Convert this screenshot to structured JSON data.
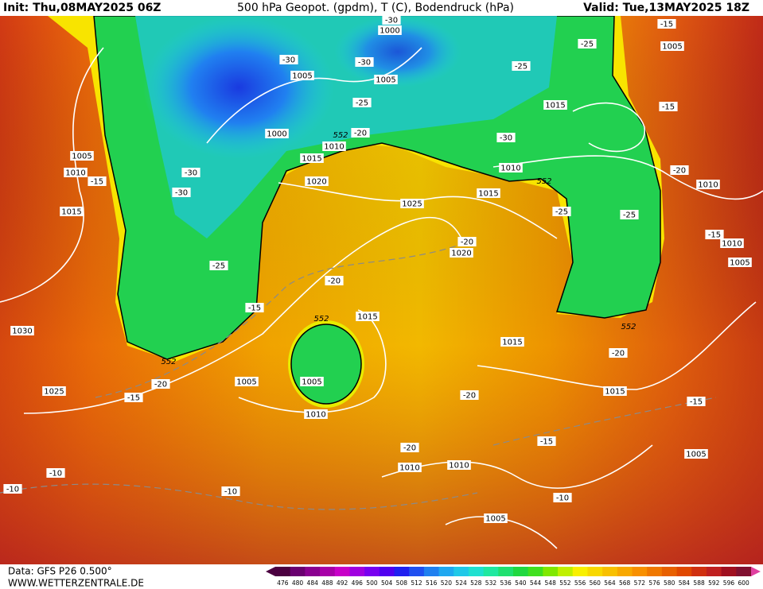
{
  "header": {
    "init": "Init: Thu,08MAY2025 06Z",
    "title": "500 hPa Geopot. (gpdm), T (C), Bodendruck (hPa)",
    "valid": "Valid: Tue,13MAY2025 18Z"
  },
  "footer": {
    "data": "Data: GFS P26 0.500°",
    "site": "WWW.WETTERZENTRALE.DE"
  },
  "colorbar": {
    "labels": [
      476,
      480,
      484,
      488,
      492,
      496,
      500,
      504,
      508,
      512,
      516,
      520,
      524,
      528,
      532,
      536,
      540,
      544,
      548,
      552,
      556,
      560,
      564,
      568,
      572,
      576,
      580,
      584,
      588,
      592,
      596,
      600
    ],
    "colors": [
      "#4b0040",
      "#6a0070",
      "#8a0090",
      "#a800a8",
      "#c800c8",
      "#a000e0",
      "#7800f0",
      "#5000f0",
      "#2020f0",
      "#2050f0",
      "#2080f0",
      "#20a8f0",
      "#20c8e8",
      "#20e0d0",
      "#20e8a0",
      "#20e070",
      "#20d840",
      "#40e020",
      "#80e800",
      "#c0f000",
      "#f8f000",
      "#f8d800",
      "#f8c000",
      "#f8a800",
      "#f89000",
      "#f07800",
      "#e86000",
      "#e04800",
      "#d03010",
      "#c02020",
      "#a01020",
      "#801030"
    ]
  },
  "pressure_labels": [
    "1000",
    "1005",
    "1005",
    "1015",
    "1005",
    "1005",
    "1010",
    "1015",
    "1000",
    "1010",
    "1015",
    "1020",
    "1025",
    "1020",
    "1010",
    "1015",
    "1010",
    "1010",
    "1005",
    "1030",
    "1025",
    "1005",
    "1005",
    "1010",
    "1015",
    "1015",
    "1015",
    "1010",
    "1010",
    "1005",
    "1005"
  ],
  "temperature_labels": [
    "-30",
    "-30",
    "-30",
    "-30",
    "-30",
    "-30",
    "-25",
    "-25",
    "-25",
    "-25",
    "-25",
    "-25",
    "-20",
    "-20",
    "-20",
    "-20",
    "-20",
    "-20",
    "-20",
    "-20",
    "-15",
    "-15",
    "-15",
    "-15",
    "-15",
    "-15",
    "-15",
    "-15",
    "-10",
    "-10",
    "-10",
    "-10"
  ],
  "height_labels": [
    "552",
    "552",
    "552",
    "552",
    "552"
  ]
}
